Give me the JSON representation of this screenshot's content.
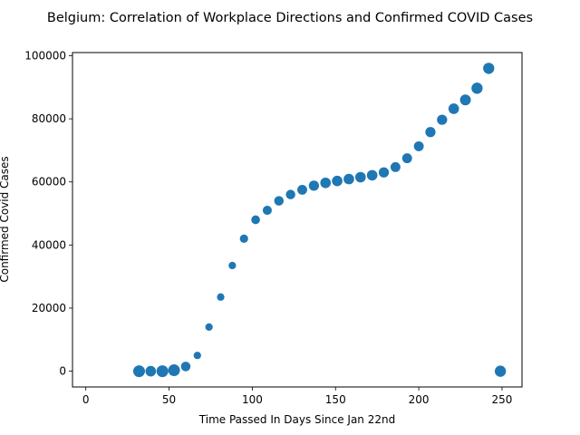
{
  "chart_data": {
    "type": "scatter",
    "title": "Belgium: Correlation of Workplace Directions and Confirmed COVID Cases",
    "xlabel": "Time Passed In Days Since Jan 22nd",
    "ylabel": "Confirmed Covid Cases",
    "xlim": [
      -8,
      262
    ],
    "ylim": [
      -5000,
      101000
    ],
    "xticks": [
      0,
      50,
      100,
      150,
      200,
      250
    ],
    "yticks": [
      0,
      20000,
      40000,
      60000,
      80000,
      100000
    ],
    "grid": false,
    "color": "#1f77b4",
    "points": [
      {
        "x": 32,
        "y": 0,
        "s": 100
      },
      {
        "x": 39,
        "y": 0,
        "s": 80
      },
      {
        "x": 46,
        "y": 0,
        "s": 100
      },
      {
        "x": 53,
        "y": 300,
        "s": 100
      },
      {
        "x": 60,
        "y": 1500,
        "s": 65
      },
      {
        "x": 67,
        "y": 5000,
        "s": 40
      },
      {
        "x": 74,
        "y": 14000,
        "s": 40
      },
      {
        "x": 81,
        "y": 23500,
        "s": 40
      },
      {
        "x": 88,
        "y": 33500,
        "s": 40
      },
      {
        "x": 95,
        "y": 42000,
        "s": 50
      },
      {
        "x": 102,
        "y": 48000,
        "s": 55
      },
      {
        "x": 109,
        "y": 51000,
        "s": 60
      },
      {
        "x": 116,
        "y": 54000,
        "s": 65
      },
      {
        "x": 123,
        "y": 56000,
        "s": 65
      },
      {
        "x": 130,
        "y": 57500,
        "s": 70
      },
      {
        "x": 137,
        "y": 58800,
        "s": 75
      },
      {
        "x": 144,
        "y": 59700,
        "s": 80
      },
      {
        "x": 151,
        "y": 60300,
        "s": 80
      },
      {
        "x": 158,
        "y": 60900,
        "s": 80
      },
      {
        "x": 165,
        "y": 61500,
        "s": 80
      },
      {
        "x": 172,
        "y": 62100,
        "s": 80
      },
      {
        "x": 179,
        "y": 63000,
        "s": 75
      },
      {
        "x": 186,
        "y": 64700,
        "s": 70
      },
      {
        "x": 193,
        "y": 67500,
        "s": 70
      },
      {
        "x": 200,
        "y": 71300,
        "s": 70
      },
      {
        "x": 207,
        "y": 75800,
        "s": 75
      },
      {
        "x": 214,
        "y": 79700,
        "s": 75
      },
      {
        "x": 221,
        "y": 83200,
        "s": 80
      },
      {
        "x": 228,
        "y": 86000,
        "s": 85
      },
      {
        "x": 235,
        "y": 89700,
        "s": 90
      },
      {
        "x": 242,
        "y": 96000,
        "s": 90
      },
      {
        "x": 249,
        "y": 0,
        "s": 90
      }
    ]
  }
}
